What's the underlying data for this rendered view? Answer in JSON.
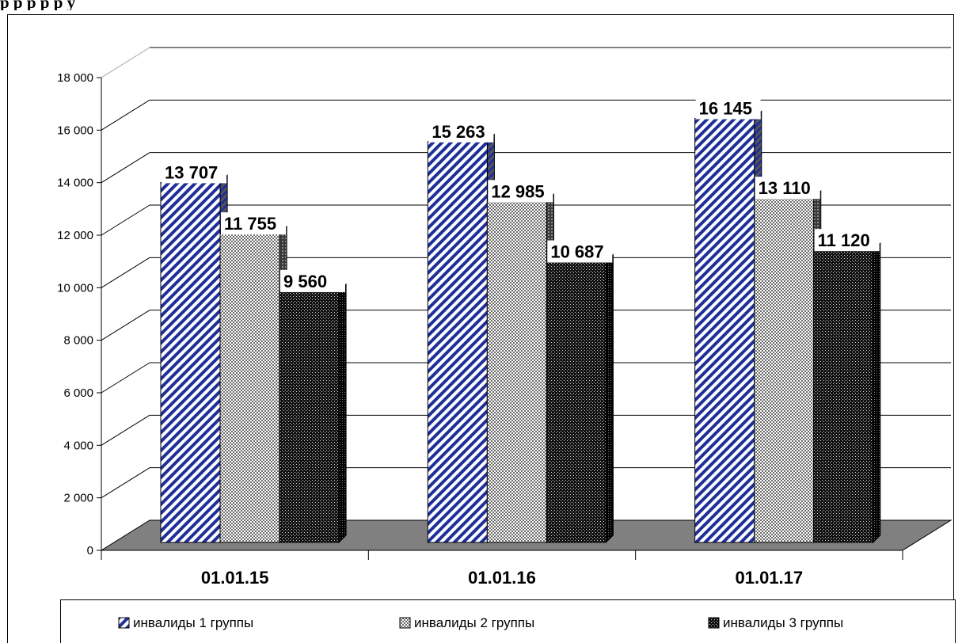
{
  "caption_fragment": "р       р       р       р                                                                                              р    у",
  "chart_data": {
    "type": "bar",
    "style": "3d-clustered",
    "categories": [
      "01.01.15",
      "01.01.16",
      "01.01.17"
    ],
    "series": [
      {
        "name": "инвалиды 1 группы",
        "values": [
          13707,
          15263,
          16145
        ],
        "labels": [
          "13 707",
          "15 263",
          "16 145"
        ],
        "pattern": "diagonal-stripes",
        "color": "#1f2f9a"
      },
      {
        "name": "инвалиды 2 группы",
        "values": [
          11755,
          12985,
          13110
        ],
        "labels": [
          "11 755",
          "12 985",
          "13 110"
        ],
        "pattern": "light-dots",
        "color": "#555555"
      },
      {
        "name": "инвалиды 3 группы",
        "values": [
          9560,
          10687,
          11120
        ],
        "labels": [
          "9 560",
          "10 687",
          "11 120"
        ],
        "pattern": "dark-dots",
        "color": "#111111"
      }
    ],
    "y_ticks": [
      "0",
      "2 000",
      "4 000",
      "6 000",
      "8 000",
      "10 000",
      "12 000",
      "14 000",
      "16 000",
      "18 000"
    ],
    "ylim": [
      0,
      18000
    ],
    "grid": true,
    "legend_position": "bottom",
    "floor_color": "#808080"
  }
}
